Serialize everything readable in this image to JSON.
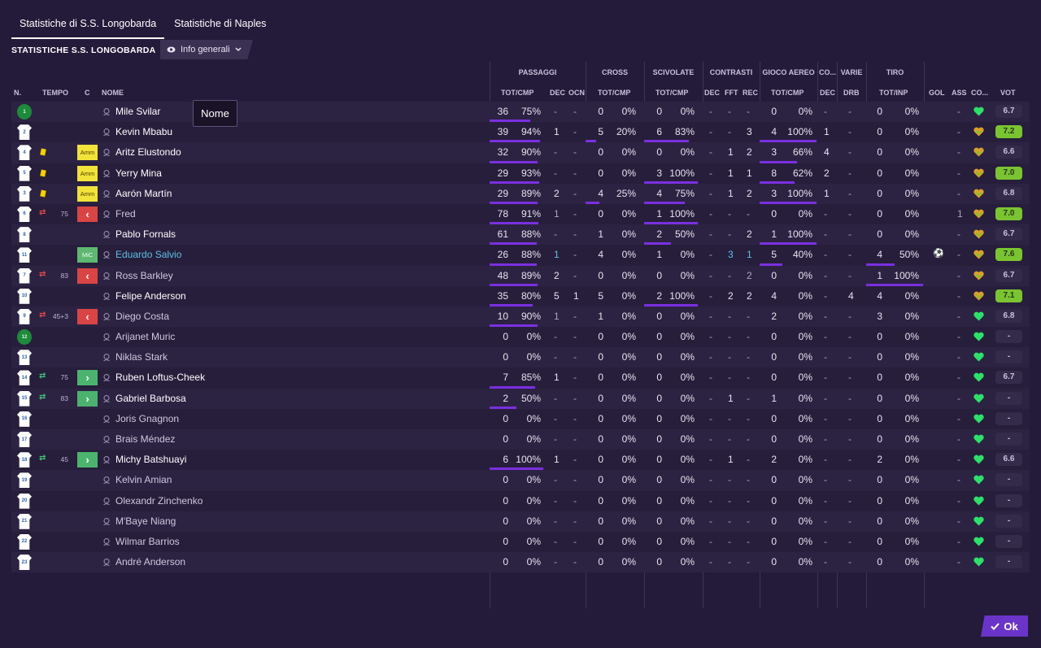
{
  "tabs": [
    {
      "label": "Statistiche di S.S. Longobarda",
      "active": true
    },
    {
      "label": "Statistiche di Naples",
      "active": false
    }
  ],
  "section_title": "STATISTICHE S.S. LONGOBARDA",
  "view_selector": {
    "label": "Info generali",
    "icon": "eye-icon"
  },
  "tooltip": "Nome",
  "ok_label": "Ok",
  "group_headers": {
    "passaggi": "PASSAGGI",
    "cross": "CROSS",
    "scivolate": "SCIVOLATE",
    "contrasti": "CONTRASTI",
    "gioco_aereo": "GIOCO AEREO",
    "co": "CO...",
    "varie": "VARIE",
    "tiro": "TIRO"
  },
  "column_headers": {
    "n": "N.",
    "tempo": "TEMPO",
    "c": "C",
    "nome": "NOME",
    "pass_totcmp": "TOT/CMP",
    "pass_dec": "DEC",
    "pass_ocn": "OCN",
    "cross_totcmp": "TOT/CMP",
    "sciv_totcmp": "TOT/CMP",
    "contr_dec": "DEC",
    "contr_fft": "FFT",
    "contr_rec": "REC",
    "aereo_totcmp": "TOT/CMP",
    "co_dec": "DEC",
    "varie_drb": "DRB",
    "tiro_totinp": "TOT/INP",
    "gol": "GOL",
    "ass": "ASS",
    "cond": "CO...",
    "vot": "VOT"
  },
  "colors": {
    "background": "#241a3a",
    "accent_purple": "#7b2fe0",
    "ok_button": "#6a34c9",
    "rating_good": "#7ac431",
    "card_yellow": "#f4d000",
    "sub_out": "#d94545",
    "sub_in": "#4cb36f",
    "link_blue": "#5cc0e6",
    "heart_green": "#2ee06a",
    "heart_gold": "#d9a02b"
  },
  "players": [
    {
      "num": "1",
      "gk": true,
      "card": false,
      "sub": "",
      "min": "",
      "role": "",
      "name": "Mile Svilar",
      "style": "bright",
      "pc": "36",
      "pp": "75%",
      "pbar": 0.75,
      "pd": "-",
      "po": "-",
      "cc": "0",
      "cp": "0%",
      "cbar": 0,
      "sc": "0",
      "sp": "0%",
      "sbar": 0,
      "kd": "-",
      "kf": "-",
      "kr": "-",
      "ac": "0",
      "ap": "0%",
      "abar": 0,
      "cod": "-",
      "drb": "-",
      "tc": "0",
      "tp": "0%",
      "tbar": 0,
      "gol": "",
      "ass": "-",
      "heart": "green",
      "vot": "6.7",
      "vgood": false
    },
    {
      "num": "2",
      "gk": false,
      "card": false,
      "sub": "",
      "min": "",
      "role": "",
      "name": "Kevin Mbabu",
      "style": "bright",
      "pc": "39",
      "pp": "94%",
      "pbar": 0.94,
      "pd": "1",
      "po": "-",
      "cc": "5",
      "cp": "20%",
      "cbar": 0.2,
      "sc": "6",
      "sp": "83%",
      "sbar": 0.83,
      "kd": "-",
      "kf": "-",
      "kr": "3",
      "ac": "4",
      "ap": "100%",
      "abar": 1,
      "cod": "1",
      "drb": "-",
      "tc": "0",
      "tp": "0%",
      "tbar": 0,
      "gol": "",
      "ass": "-",
      "heart": "gold",
      "vot": "7.2",
      "vgood": true
    },
    {
      "num": "4",
      "gk": false,
      "card": true,
      "sub": "",
      "min": "",
      "role": "Amm",
      "name": "Aritz Elustondo",
      "style": "bright",
      "pc": "32",
      "pp": "90%",
      "pbar": 0.9,
      "pd": "-",
      "po": "-",
      "cc": "0",
      "cp": "0%",
      "cbar": 0,
      "sc": "0",
      "sp": "0%",
      "sbar": 0,
      "kd": "-",
      "kf": "1",
      "kr": "2",
      "ac": "3",
      "ap": "66%",
      "abar": 0.66,
      "cod": "4",
      "drb": "-",
      "tc": "0",
      "tp": "0%",
      "tbar": 0,
      "gol": "",
      "ass": "-",
      "heart": "gold",
      "vot": "6.6",
      "vgood": false
    },
    {
      "num": "5",
      "gk": false,
      "card": true,
      "sub": "",
      "min": "",
      "role": "Amm",
      "name": "Yerry Mina",
      "style": "bright",
      "pc": "29",
      "pp": "93%",
      "pbar": 0.93,
      "pd": "-",
      "po": "-",
      "cc": "0",
      "cp": "0%",
      "cbar": 0,
      "sc": "3",
      "sp": "100%",
      "sbar": 1,
      "kd": "-",
      "kf": "1",
      "kr": "1",
      "ac": "8",
      "ap": "62%",
      "abar": 0.62,
      "cod": "2",
      "drb": "-",
      "tc": "0",
      "tp": "0%",
      "tbar": 0,
      "gol": "",
      "ass": "-",
      "heart": "gold",
      "vot": "7.0",
      "vgood": true
    },
    {
      "num": "3",
      "gk": false,
      "card": true,
      "sub": "",
      "min": "",
      "role": "Amm",
      "name": "Aarón Martín",
      "style": "bright",
      "pc": "29",
      "pp": "89%",
      "pbar": 0.89,
      "pd": "2",
      "po": "-",
      "cc": "4",
      "cp": "25%",
      "cbar": 0.25,
      "sc": "4",
      "sp": "75%",
      "sbar": 0.75,
      "kd": "-",
      "kf": "1",
      "kr": "2",
      "ac": "3",
      "ap": "100%",
      "abar": 1,
      "cod": "1",
      "drb": "-",
      "tc": "0",
      "tp": "0%",
      "tbar": 0,
      "gol": "",
      "ass": "-",
      "heart": "gold",
      "vot": "6.8",
      "vgood": false
    },
    {
      "num": "6",
      "gk": false,
      "card": false,
      "sub": "out",
      "min": "75",
      "role": "",
      "name": "Fred",
      "style": "dim",
      "pc": "78",
      "pp": "91%",
      "pbar": 0.91,
      "pd": "1",
      "po": "-",
      "cc": "0",
      "cp": "0%",
      "cbar": 0,
      "sc": "1",
      "sp": "100%",
      "sbar": 1,
      "kd": "-",
      "kf": "-",
      "kr": "-",
      "ac": "0",
      "ap": "0%",
      "abar": 0,
      "cod": "-",
      "drb": "-",
      "tc": "0",
      "tp": "0%",
      "tbar": 0,
      "gol": "",
      "ass": "1",
      "heart": "gold",
      "vot": "7.0",
      "vgood": true
    },
    {
      "num": "8",
      "gk": false,
      "card": false,
      "sub": "",
      "min": "",
      "role": "",
      "name": "Pablo Fornals",
      "style": "bright",
      "pc": "61",
      "pp": "88%",
      "pbar": 0.88,
      "pd": "-",
      "po": "-",
      "cc": "1",
      "cp": "0%",
      "cbar": 0,
      "sc": "2",
      "sp": "50%",
      "sbar": 0.5,
      "kd": "-",
      "kf": "-",
      "kr": "2",
      "ac": "1",
      "ap": "100%",
      "abar": 1,
      "cod": "-",
      "drb": "-",
      "tc": "0",
      "tp": "0%",
      "tbar": 0,
      "gol": "",
      "ass": "-",
      "heart": "gold",
      "vot": "6.7",
      "vgood": false
    },
    {
      "num": "11",
      "gk": false,
      "card": false,
      "sub": "",
      "min": "",
      "role": "MiC",
      "name": "Eduardo Salvio",
      "style": "link",
      "pc": "26",
      "pp": "88%",
      "pbar": 0.88,
      "pd": "1",
      "po": "-",
      "cc": "4",
      "cp": "0%",
      "cbar": 0,
      "sc": "1",
      "sp": "0%",
      "sbar": 0,
      "kd": "-",
      "kf": "3",
      "kr": "1",
      "ac": "5",
      "ap": "40%",
      "abar": 0.4,
      "cod": "-",
      "drb": "-",
      "tc": "4",
      "tp": "50%",
      "tbar": 0.5,
      "gol": "ball",
      "ass": "-",
      "heart": "gold",
      "vot": "7.6",
      "vgood": true
    },
    {
      "num": "7",
      "gk": false,
      "card": false,
      "sub": "out",
      "min": "83",
      "role": "",
      "name": "Ross Barkley",
      "style": "dim",
      "pc": "48",
      "pp": "89%",
      "pbar": 0.89,
      "pd": "2",
      "po": "-",
      "cc": "0",
      "cp": "0%",
      "cbar": 0,
      "sc": "0",
      "sp": "0%",
      "sbar": 0,
      "kd": "-",
      "kf": "-",
      "kr": "2",
      "ac": "0",
      "ap": "0%",
      "abar": 0,
      "cod": "-",
      "drb": "-",
      "tc": "1",
      "tp": "100%",
      "tbar": 1,
      "gol": "",
      "ass": "-",
      "heart": "gold",
      "vot": "6.7",
      "vgood": false
    },
    {
      "num": "10",
      "gk": false,
      "card": false,
      "sub": "",
      "min": "",
      "role": "",
      "name": "Felipe Anderson",
      "style": "bright",
      "pc": "35",
      "pp": "80%",
      "pbar": 0.8,
      "pd": "5",
      "po": "1",
      "cc": "5",
      "cp": "0%",
      "cbar": 0,
      "sc": "2",
      "sp": "100%",
      "sbar": 1,
      "kd": "-",
      "kf": "2",
      "kr": "2",
      "ac": "4",
      "ap": "0%",
      "abar": 0,
      "cod": "-",
      "drb": "4",
      "tc": "4",
      "tp": "0%",
      "tbar": 0,
      "gol": "",
      "ass": "-",
      "heart": "gold",
      "vot": "7.1",
      "vgood": true
    },
    {
      "num": "9",
      "gk": false,
      "card": false,
      "sub": "out",
      "min": "45+3",
      "role": "",
      "name": "Diego Costa",
      "style": "dim",
      "pc": "10",
      "pp": "90%",
      "pbar": 0.9,
      "pd": "1",
      "po": "-",
      "cc": "1",
      "cp": "0%",
      "cbar": 0,
      "sc": "0",
      "sp": "0%",
      "sbar": 0,
      "kd": "-",
      "kf": "-",
      "kr": "-",
      "ac": "2",
      "ap": "0%",
      "abar": 0,
      "cod": "-",
      "drb": "-",
      "tc": "3",
      "tp": "0%",
      "tbar": 0,
      "gol": "",
      "ass": "-",
      "heart": "green",
      "vot": "6.8",
      "vgood": false
    },
    {
      "num": "12",
      "gk": true,
      "card": false,
      "sub": "",
      "min": "",
      "role": "",
      "name": "Arijanet Muric",
      "style": "dim",
      "pc": "0",
      "pp": "0%",
      "pbar": 0,
      "pd": "-",
      "po": "-",
      "cc": "0",
      "cp": "0%",
      "cbar": 0,
      "sc": "0",
      "sp": "0%",
      "sbar": 0,
      "kd": "-",
      "kf": "-",
      "kr": "-",
      "ac": "0",
      "ap": "0%",
      "abar": 0,
      "cod": "-",
      "drb": "-",
      "tc": "0",
      "tp": "0%",
      "tbar": 0,
      "gol": "",
      "ass": "-",
      "heart": "green",
      "vot": "-",
      "vgood": false
    },
    {
      "num": "13",
      "gk": false,
      "card": false,
      "sub": "",
      "min": "",
      "role": "",
      "name": "Niklas Stark",
      "style": "dim",
      "pc": "0",
      "pp": "0%",
      "pbar": 0,
      "pd": "-",
      "po": "-",
      "cc": "0",
      "cp": "0%",
      "cbar": 0,
      "sc": "0",
      "sp": "0%",
      "sbar": 0,
      "kd": "-",
      "kf": "-",
      "kr": "-",
      "ac": "0",
      "ap": "0%",
      "abar": 0,
      "cod": "-",
      "drb": "-",
      "tc": "0",
      "tp": "0%",
      "tbar": 0,
      "gol": "",
      "ass": "-",
      "heart": "green",
      "vot": "-",
      "vgood": false
    },
    {
      "num": "14",
      "gk": false,
      "card": false,
      "sub": "in",
      "min": "75",
      "role": "",
      "name": "Ruben Loftus-Cheek",
      "style": "bright",
      "pc": "7",
      "pp": "85%",
      "pbar": 0.85,
      "pd": "1",
      "po": "-",
      "cc": "0",
      "cp": "0%",
      "cbar": 0,
      "sc": "0",
      "sp": "0%",
      "sbar": 0,
      "kd": "-",
      "kf": "-",
      "kr": "-",
      "ac": "0",
      "ap": "0%",
      "abar": 0,
      "cod": "-",
      "drb": "-",
      "tc": "0",
      "tp": "0%",
      "tbar": 0,
      "gol": "",
      "ass": "-",
      "heart": "green",
      "vot": "6.7",
      "vgood": false
    },
    {
      "num": "15",
      "gk": false,
      "card": false,
      "sub": "in",
      "min": "83",
      "role": "",
      "name": "Gabriel Barbosa",
      "style": "bright",
      "pc": "2",
      "pp": "50%",
      "pbar": 0.5,
      "pd": "-",
      "po": "-",
      "cc": "0",
      "cp": "0%",
      "cbar": 0,
      "sc": "0",
      "sp": "0%",
      "sbar": 0,
      "kd": "-",
      "kf": "1",
      "kr": "-",
      "ac": "1",
      "ap": "0%",
      "abar": 0,
      "cod": "-",
      "drb": "-",
      "tc": "0",
      "tp": "0%",
      "tbar": 0,
      "gol": "",
      "ass": "-",
      "heart": "green",
      "vot": "-",
      "vgood": false
    },
    {
      "num": "16",
      "gk": false,
      "card": false,
      "sub": "",
      "min": "",
      "role": "",
      "name": "Joris Gnagnon",
      "style": "dim",
      "pc": "0",
      "pp": "0%",
      "pbar": 0,
      "pd": "-",
      "po": "-",
      "cc": "0",
      "cp": "0%",
      "cbar": 0,
      "sc": "0",
      "sp": "0%",
      "sbar": 0,
      "kd": "-",
      "kf": "-",
      "kr": "-",
      "ac": "0",
      "ap": "0%",
      "abar": 0,
      "cod": "-",
      "drb": "-",
      "tc": "0",
      "tp": "0%",
      "tbar": 0,
      "gol": "",
      "ass": "-",
      "heart": "green",
      "vot": "-",
      "vgood": false
    },
    {
      "num": "17",
      "gk": false,
      "card": false,
      "sub": "",
      "min": "",
      "role": "",
      "name": "Brais Méndez",
      "style": "dim",
      "pc": "0",
      "pp": "0%",
      "pbar": 0,
      "pd": "-",
      "po": "-",
      "cc": "0",
      "cp": "0%",
      "cbar": 0,
      "sc": "0",
      "sp": "0%",
      "sbar": 0,
      "kd": "-",
      "kf": "-",
      "kr": "-",
      "ac": "0",
      "ap": "0%",
      "abar": 0,
      "cod": "-",
      "drb": "-",
      "tc": "0",
      "tp": "0%",
      "tbar": 0,
      "gol": "",
      "ass": "-",
      "heart": "green",
      "vot": "-",
      "vgood": false
    },
    {
      "num": "18",
      "gk": false,
      "card": false,
      "sub": "in",
      "min": "45",
      "role": "",
      "name": "Michy Batshuayi",
      "style": "bright",
      "pc": "6",
      "pp": "100%",
      "pbar": 1,
      "pd": "1",
      "po": "-",
      "cc": "0",
      "cp": "0%",
      "cbar": 0,
      "sc": "0",
      "sp": "0%",
      "sbar": 0,
      "kd": "-",
      "kf": "1",
      "kr": "-",
      "ac": "2",
      "ap": "0%",
      "abar": 0,
      "cod": "-",
      "drb": "-",
      "tc": "2",
      "tp": "0%",
      "tbar": 0,
      "gol": "",
      "ass": "-",
      "heart": "green",
      "vot": "6.6",
      "vgood": false
    },
    {
      "num": "19",
      "gk": false,
      "card": false,
      "sub": "",
      "min": "",
      "role": "",
      "name": "Kelvin Amian",
      "style": "dim",
      "pc": "0",
      "pp": "0%",
      "pbar": 0,
      "pd": "-",
      "po": "-",
      "cc": "0",
      "cp": "0%",
      "cbar": 0,
      "sc": "0",
      "sp": "0%",
      "sbar": 0,
      "kd": "-",
      "kf": "-",
      "kr": "-",
      "ac": "0",
      "ap": "0%",
      "abar": 0,
      "cod": "-",
      "drb": "-",
      "tc": "0",
      "tp": "0%",
      "tbar": 0,
      "gol": "",
      "ass": "-",
      "heart": "green",
      "vot": "-",
      "vgood": false
    },
    {
      "num": "20",
      "gk": false,
      "card": false,
      "sub": "",
      "min": "",
      "role": "",
      "name": "Olexandr Zinchenko",
      "style": "dim",
      "pc": "0",
      "pp": "0%",
      "pbar": 0,
      "pd": "-",
      "po": "-",
      "cc": "0",
      "cp": "0%",
      "cbar": 0,
      "sc": "0",
      "sp": "0%",
      "sbar": 0,
      "kd": "-",
      "kf": "-",
      "kr": "-",
      "ac": "0",
      "ap": "0%",
      "abar": 0,
      "cod": "-",
      "drb": "-",
      "tc": "0",
      "tp": "0%",
      "tbar": 0,
      "gol": "",
      "ass": "-",
      "heart": "green",
      "vot": "-",
      "vgood": false
    },
    {
      "num": "21",
      "gk": false,
      "card": false,
      "sub": "",
      "min": "",
      "role": "",
      "name": "M'Baye Niang",
      "style": "dim",
      "pc": "0",
      "pp": "0%",
      "pbar": 0,
      "pd": "-",
      "po": "-",
      "cc": "0",
      "cp": "0%",
      "cbar": 0,
      "sc": "0",
      "sp": "0%",
      "sbar": 0,
      "kd": "-",
      "kf": "-",
      "kr": "-",
      "ac": "0",
      "ap": "0%",
      "abar": 0,
      "cod": "-",
      "drb": "-",
      "tc": "0",
      "tp": "0%",
      "tbar": 0,
      "gol": "",
      "ass": "-",
      "heart": "green",
      "vot": "-",
      "vgood": false
    },
    {
      "num": "22",
      "gk": false,
      "card": false,
      "sub": "",
      "min": "",
      "role": "",
      "name": "Wilmar Barrios",
      "style": "dim",
      "pc": "0",
      "pp": "0%",
      "pbar": 0,
      "pd": "-",
      "po": "-",
      "cc": "0",
      "cp": "0%",
      "cbar": 0,
      "sc": "0",
      "sp": "0%",
      "sbar": 0,
      "kd": "-",
      "kf": "-",
      "kr": "-",
      "ac": "0",
      "ap": "0%",
      "abar": 0,
      "cod": "-",
      "drb": "-",
      "tc": "0",
      "tp": "0%",
      "tbar": 0,
      "gol": "",
      "ass": "-",
      "heart": "green",
      "vot": "-",
      "vgood": false
    },
    {
      "num": "23",
      "gk": false,
      "card": false,
      "sub": "",
      "min": "",
      "role": "",
      "name": "André Anderson",
      "style": "dim",
      "pc": "0",
      "pp": "0%",
      "pbar": 0,
      "pd": "-",
      "po": "-",
      "cc": "0",
      "cp": "0%",
      "cbar": 0,
      "sc": "0",
      "sp": "0%",
      "sbar": 0,
      "kd": "-",
      "kf": "-",
      "kr": "-",
      "ac": "0",
      "ap": "0%",
      "abar": 0,
      "cod": "-",
      "drb": "-",
      "tc": "0",
      "tp": "0%",
      "tbar": 0,
      "gol": "",
      "ass": "-",
      "heart": "green",
      "vot": "-",
      "vgood": false
    }
  ]
}
